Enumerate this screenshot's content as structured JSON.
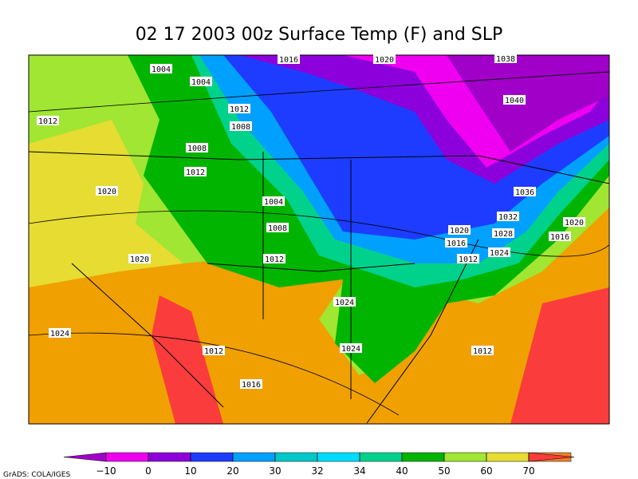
{
  "map": {
    "title": "02 17 2003 00z Surface Temp (F) and SLP",
    "isobar_labels": [
      1004,
      1004,
      1012,
      1008,
      1008,
      1012,
      1004,
      1008,
      1012,
      1012,
      1020,
      1020,
      1020,
      1016,
      1024,
      1038,
      1040,
      1036,
      1032,
      1028,
      1024,
      1020,
      1016,
      1012,
      1020,
      1016,
      1024,
      1024,
      1012,
      1016,
      1012
    ],
    "colorbar": {
      "ticks": [
        {
          "value": -10,
          "label": "−10"
        },
        0,
        10,
        20,
        30,
        32,
        34,
        40,
        50,
        60,
        70
      ],
      "colors": [
        "#a000c8",
        "#f000f0",
        "#8c00dc",
        "#1e3cff",
        "#00a0ff",
        "#00c8c8",
        "#00dcff",
        "#00d28c",
        "#00b400",
        "#a0e632",
        "#e6dc32",
        "#f08228",
        "#fa3c3c"
      ]
    },
    "credit": "GrADS: COLA/IGES"
  }
}
